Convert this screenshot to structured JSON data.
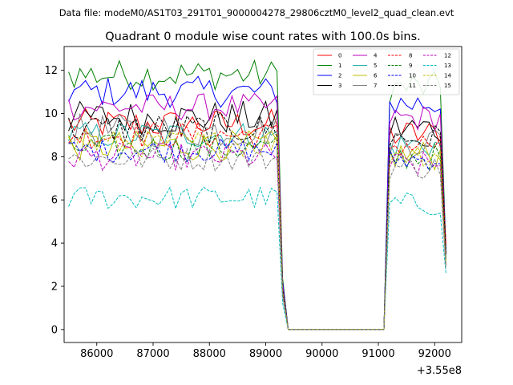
{
  "chart_data": {
    "type": "line",
    "suptitle": "Data file: modeM0/AS1T03_291T01_9000004278_29806cztM0_level2_quad_clean.evt",
    "title": "Quadrant 0 module wise count rates with 100.0s bins.",
    "xlabel": "",
    "ylabel": "",
    "offset_label": "+3.55e8",
    "xlim": [
      85420,
      92480
    ],
    "ylim": [
      -0.6,
      13.1
    ],
    "xticks": [
      86000,
      87000,
      88000,
      89000,
      90000,
      91000,
      92000
    ],
    "xtick_labels": [
      "86000",
      "87000",
      "88000",
      "89000",
      "90000",
      "91000",
      "92000"
    ],
    "yticks": [
      0,
      2,
      4,
      6,
      8,
      10,
      12
    ],
    "ytick_labels": [
      "0",
      "2",
      "4",
      "6",
      "8",
      "10",
      "12"
    ],
    "x_start": 85500,
    "x_step": 100,
    "n_points": 48,
    "gap_start_index": 38,
    "gap_end_index": 56,
    "recover_index": 57,
    "end_index": 67,
    "legend_position": "top-right",
    "series": [
      {
        "name": "0",
        "color": "#ff0000",
        "dash": "solid",
        "base": 9.5,
        "amp": 0.45,
        "end": 4.0
      },
      {
        "name": "1",
        "color": "#008000",
        "dash": "solid",
        "base": 11.8,
        "amp": 0.45,
        "end": 3.8
      },
      {
        "name": "2",
        "color": "#0000ff",
        "dash": "solid",
        "base": 11.0,
        "amp": 0.45,
        "end": 3.7
      },
      {
        "name": "3",
        "color": "#000000",
        "dash": "solid",
        "base": 9.8,
        "amp": 0.5,
        "end": 3.6
      },
      {
        "name": "4",
        "color": "#bf00bf",
        "dash": "solid",
        "base": 10.3,
        "amp": 0.4,
        "end": 3.5
      },
      {
        "name": "5",
        "color": "#20b2aa",
        "dash": "solid",
        "base": 9.0,
        "amp": 0.4,
        "end": 3.3
      },
      {
        "name": "6",
        "color": "#bfbf00",
        "dash": "solid",
        "base": 8.5,
        "amp": 0.45,
        "end": 3.2
      },
      {
        "name": "7",
        "color": "#808080",
        "dash": "solid",
        "base": 9.2,
        "amp": 0.5,
        "end": 3.4
      },
      {
        "name": "8",
        "color": "#ff0000",
        "dash": "dashed",
        "base": 9.0,
        "amp": 0.4,
        "end": 3.9
      },
      {
        "name": "9",
        "color": "#008000",
        "dash": "dashed",
        "base": 8.4,
        "amp": 0.4,
        "end": 3.1
      },
      {
        "name": "10",
        "color": "#0000ff",
        "dash": "dashed",
        "base": 8.3,
        "amp": 0.35,
        "end": 3.0
      },
      {
        "name": "11",
        "color": "#000000",
        "dash": "dashed",
        "base": 9.3,
        "amp": 0.45,
        "end": 3.5
      },
      {
        "name": "12",
        "color": "#bf00bf",
        "dash": "dashed",
        "base": 8.0,
        "amp": 0.4,
        "end": 2.9
      },
      {
        "name": "13",
        "color": "#00bfbf",
        "dash": "dashed",
        "base": 6.1,
        "amp": 0.35,
        "end": 2.6
      },
      {
        "name": "14",
        "color": "#bfbf00",
        "dash": "dashed",
        "base": 8.6,
        "amp": 0.4,
        "end": 3.0
      },
      {
        "name": "15",
        "color": "#808080",
        "dash": "dashed",
        "base": 7.9,
        "amp": 0.35,
        "end": 2.8
      }
    ]
  }
}
